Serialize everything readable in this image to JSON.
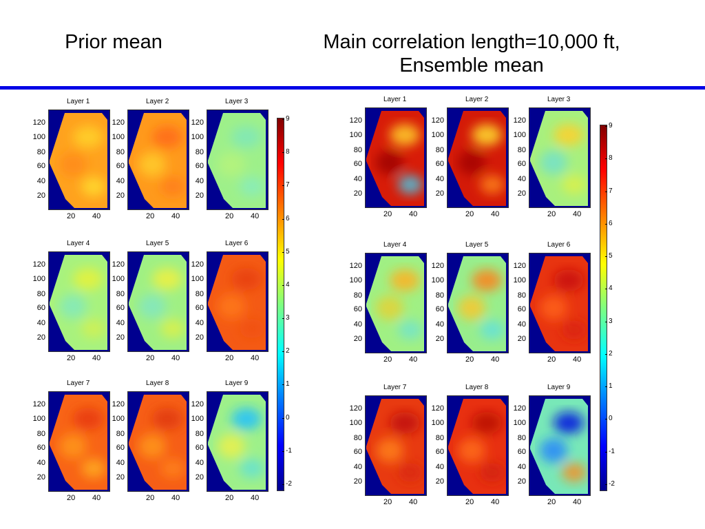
{
  "titles": {
    "left": "Prior mean",
    "right_line1": "Main correlation length=10,000 ft,",
    "right_line2": "Ensemble mean"
  },
  "colors": {
    "divider": "#0000e6",
    "background_field": "#00008f"
  },
  "y_ticks": [
    "120",
    "100",
    "80",
    "60",
    "40",
    "20"
  ],
  "x_ticks": [
    "20",
    "40"
  ],
  "colorbar_ticks": [
    "9",
    "8",
    "7",
    "6",
    "5",
    "4",
    "3",
    "2",
    "1",
    "0",
    "-1",
    "-2"
  ],
  "groups": [
    {
      "name": "prior",
      "panels": [
        {
          "label": "Layer 1",
          "fill": "#ffa21e",
          "blobs": [
            "#ffd22a",
            "#ff8a18",
            "#ffe030"
          ]
        },
        {
          "label": "Layer 2",
          "fill": "#ff9a1c",
          "blobs": [
            "#ff6a14",
            "#ffd02a",
            "#ff7a16"
          ]
        },
        {
          "label": "Layer 3",
          "fill": "#9ef08a",
          "blobs": [
            "#7fe8b8",
            "#b8f47a",
            "#86ecc0"
          ]
        },
        {
          "label": "Layer 4",
          "fill": "#a8f27e",
          "blobs": [
            "#e8f23a",
            "#7fe8c0",
            "#d4f050"
          ]
        },
        {
          "label": "Layer 5",
          "fill": "#a0f084",
          "blobs": [
            "#f0f040",
            "#7fe6c4",
            "#e0f046"
          ]
        },
        {
          "label": "Layer 6",
          "fill": "#f45a14",
          "blobs": [
            "#e84010",
            "#ff7a18",
            "#f05014"
          ]
        },
        {
          "label": "Layer 7",
          "fill": "#f86416",
          "blobs": [
            "#e83812",
            "#ff9a1c",
            "#ffb022"
          ]
        },
        {
          "label": "Layer 8",
          "fill": "#f65e16",
          "blobs": [
            "#e03a10",
            "#ff9a1c",
            "#ff8418"
          ]
        },
        {
          "label": "Layer 9",
          "fill": "#9ef08a",
          "blobs": [
            "#20c0ff",
            "#f0f048",
            "#60e0d8"
          ]
        }
      ]
    },
    {
      "name": "ensemble",
      "panels": [
        {
          "label": "Layer 1",
          "fill": "#d81c08",
          "blobs": [
            "#ffd02a",
            "#9a0000",
            "#40d0f0"
          ]
        },
        {
          "label": "Layer 2",
          "fill": "#d41a08",
          "blobs": [
            "#ffe030",
            "#a00000",
            "#ff8a18"
          ]
        },
        {
          "label": "Layer 3",
          "fill": "#a8f07e",
          "blobs": [
            "#ffd02a",
            "#70e0d0",
            "#e0f044"
          ]
        },
        {
          "label": "Layer 4",
          "fill": "#a0f084",
          "blobs": [
            "#ffb022",
            "#e8d030",
            "#70e4d0"
          ]
        },
        {
          "label": "Layer 5",
          "fill": "#98ee8c",
          "blobs": [
            "#ff8018",
            "#ffc428",
            "#60e0e0"
          ]
        },
        {
          "label": "Layer 6",
          "fill": "#e83410",
          "blobs": [
            "#c81008",
            "#ff6416",
            "#d82010"
          ]
        },
        {
          "label": "Layer 7",
          "fill": "#e83a10",
          "blobs": [
            "#c01008",
            "#ff8418",
            "#d82810"
          ]
        },
        {
          "label": "Layer 8",
          "fill": "#e83010",
          "blobs": [
            "#b80c06",
            "#ff7016",
            "#d02010"
          ]
        },
        {
          "label": "Layer 9",
          "fill": "#78e8b8",
          "blobs": [
            "#0010e0",
            "#2080ff",
            "#ff8a18"
          ]
        }
      ]
    }
  ]
}
